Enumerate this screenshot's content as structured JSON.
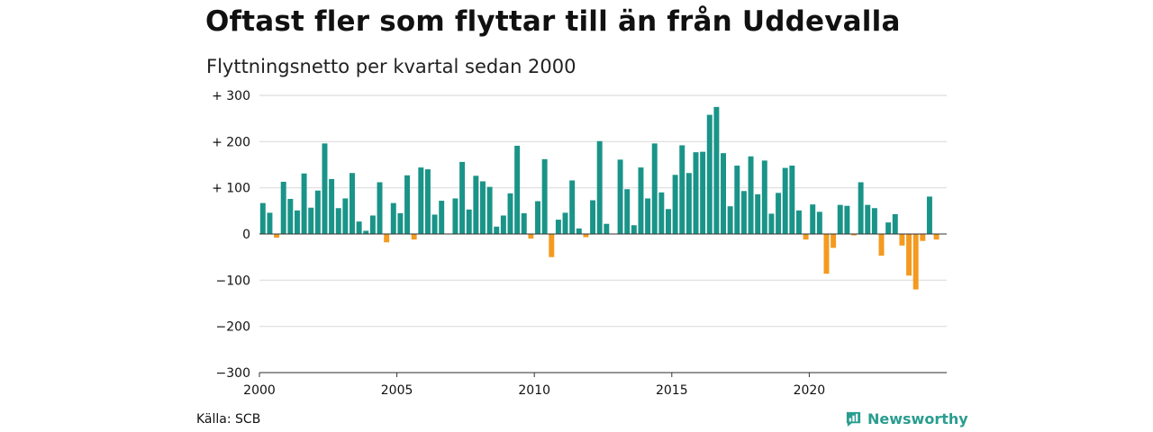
{
  "title": "Oftast fler som flyttar till än från Uddevalla",
  "subtitle": "Flyttningsnetto per kvartal sedan 2000",
  "source": "Källa: SCB",
  "brand": {
    "name": "Newsworthy",
    "icon": "bar-chart-speech-icon",
    "color": "#2a9d8f"
  },
  "chart_data": {
    "type": "bar",
    "title": "Oftast fler som flyttar till än från Uddevalla",
    "subtitle": "Flyttningsnetto per kvartal sedan 2000",
    "xlabel": "",
    "ylabel": "",
    "x_start": 2000,
    "periods_per_year": 4,
    "xlim": [
      2000,
      2025
    ],
    "ylim": [
      -300,
      300
    ],
    "grid": true,
    "legend": "none",
    "y_ticks": [
      {
        "value": 300,
        "label": "+ 300"
      },
      {
        "value": 200,
        "label": "+ 200"
      },
      {
        "value": 100,
        "label": "+ 100"
      },
      {
        "value": 0,
        "label": "0"
      },
      {
        "value": -100,
        "label": "−100"
      },
      {
        "value": -200,
        "label": "−200"
      },
      {
        "value": -300,
        "label": "−300"
      }
    ],
    "x_ticks": [
      {
        "value": 2000,
        "label": "2000"
      },
      {
        "value": 2005,
        "label": "2005"
      },
      {
        "value": 2010,
        "label": "2010"
      },
      {
        "value": 2015,
        "label": "2015"
      },
      {
        "value": 2020,
        "label": "2020"
      }
    ],
    "colors": {
      "positive": "#1a9488",
      "negative": "#f39a1f"
    },
    "values": [
      67,
      46,
      -8,
      113,
      76,
      51,
      131,
      57,
      94,
      196,
      119,
      56,
      77,
      132,
      27,
      7,
      40,
      112,
      -18,
      67,
      45,
      127,
      -12,
      144,
      140,
      42,
      72,
      0,
      77,
      156,
      53,
      126,
      114,
      102,
      16,
      40,
      88,
      191,
      45,
      -10,
      71,
      162,
      -50,
      31,
      46,
      116,
      12,
      -7,
      73,
      201,
      22,
      0,
      161,
      97,
      19,
      144,
      77,
      196,
      90,
      54,
      128,
      192,
      132,
      177,
      178,
      258,
      275,
      175,
      60,
      148,
      93,
      168,
      86,
      159,
      44,
      89,
      143,
      148,
      51,
      -12,
      64,
      48,
      -86,
      -30,
      63,
      61,
      -3,
      112,
      63,
      56,
      -47,
      25,
      43,
      -25,
      -90,
      -120,
      -15,
      81,
      -12
    ]
  }
}
